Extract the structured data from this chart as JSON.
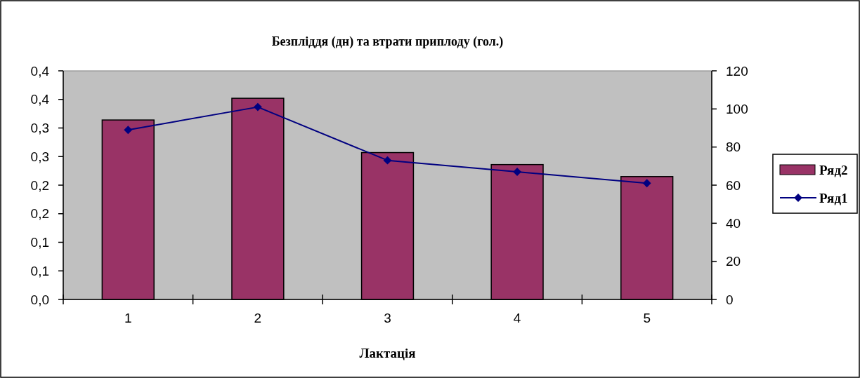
{
  "chart_data": {
    "type": "bar",
    "title": "Безпліддя (дн) та втрати приплоду (гол.)",
    "xlabel": "Лактація",
    "categories": [
      "1",
      "2",
      "3",
      "4",
      "5"
    ],
    "series": [
      {
        "name": "Ряд2",
        "type": "bar",
        "color": "#993366",
        "values": [
          0.314,
          0.352,
          0.257,
          0.236,
          0.215
        ]
      },
      {
        "name": "Ряд1",
        "type": "line",
        "axis": "y2",
        "color": "#000080",
        "values": [
          89,
          101,
          73,
          67,
          61
        ]
      }
    ],
    "ylim": [
      0,
      0.4
    ],
    "yticks": [
      {
        "value": 0,
        "label": "0,0"
      },
      {
        "value": 0.05,
        "label": "0,1"
      },
      {
        "value": 0.1,
        "label": "0,1"
      },
      {
        "value": 0.15,
        "label": "0,2"
      },
      {
        "value": 0.2,
        "label": "0,2"
      },
      {
        "value": 0.25,
        "label": "0,3"
      },
      {
        "value": 0.3,
        "label": "0,3"
      },
      {
        "value": 0.35,
        "label": "0,4"
      },
      {
        "value": 0.4,
        "label": "0,4"
      }
    ],
    "y2lim": [
      0,
      120
    ],
    "y2ticks": [
      0,
      20,
      40,
      60,
      80,
      100,
      120
    ],
    "legend": "right",
    "marker": "diamond",
    "line_style": "solid",
    "grid": false
  }
}
